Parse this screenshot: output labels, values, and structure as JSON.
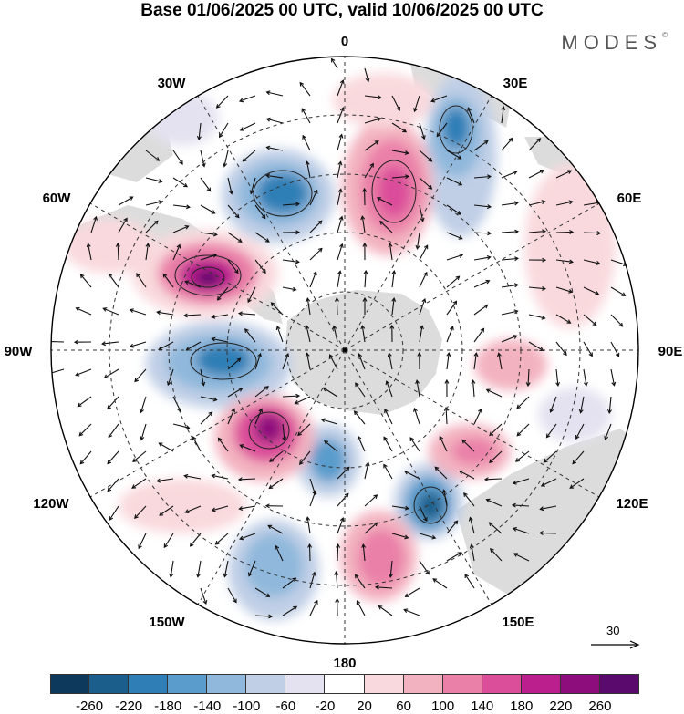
{
  "title": "Base 01/06/2025 00 UTC, valid 10/06/2025 00 UTC",
  "brand": "MODES",
  "brand_mark": "©",
  "longitude_labels": {
    "n0": "0",
    "n30e": "30E",
    "n60e": "60E",
    "e90": "90E",
    "n120e": "120E",
    "n150e": "150E",
    "s180": "180",
    "n150w": "150W",
    "n120w": "120W",
    "w90": "90W",
    "n60w": "60W",
    "n30w": "30W"
  },
  "vector_reference": {
    "label": "30"
  },
  "colorbar": {
    "ticks": [
      "-260",
      "-220",
      "-180",
      "-140",
      "-100",
      "-60",
      "-20",
      "20",
      "60",
      "100",
      "140",
      "180",
      "220",
      "260"
    ],
    "colors": [
      "#0d3a5c",
      "#1b5e8c",
      "#2f7fb6",
      "#5a9ccc",
      "#8fb8dc",
      "#c0cfe6",
      "#e4e2f0",
      "#ffffff",
      "#f9d9dd",
      "#f3b2c0",
      "#ea80a8",
      "#db4e9a",
      "#bb1f8d",
      "#8e0d7d",
      "#5a0a6c"
    ]
  },
  "colors": {
    "land": "#dcdcdc",
    "ocean": "#ffffff"
  }
}
